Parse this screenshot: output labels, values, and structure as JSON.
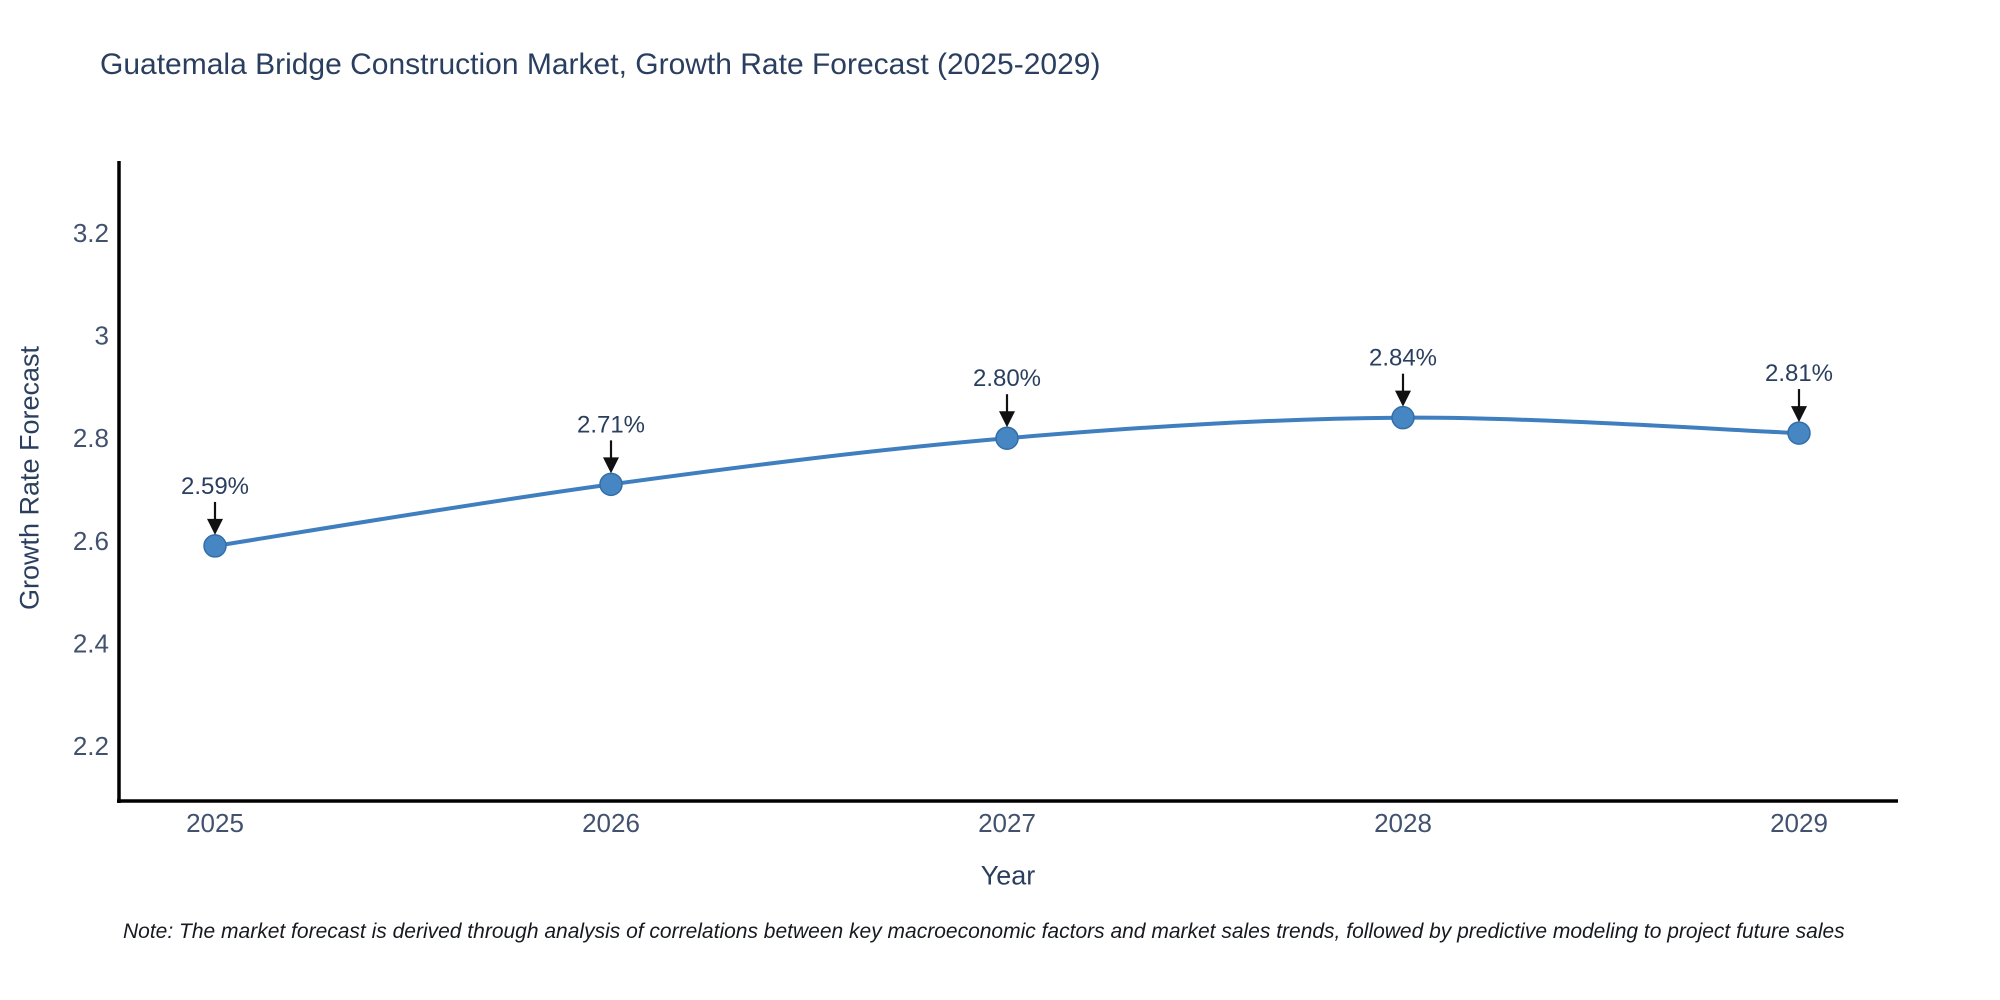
{
  "title": "Guatemala Bridge Construction Market, Growth Rate Forecast (2025-2029)",
  "note": "Note: The market forecast is derived through analysis of correlations between key macroeconomic factors and market sales trends, followed by predictive modeling to project future sales",
  "chart_data": {
    "type": "line",
    "title": "Guatemala Bridge Construction Market, Growth Rate Forecast (2025-2029)",
    "xlabel": "Year",
    "ylabel": "Growth Rate Forecast",
    "x": [
      2025,
      2026,
      2027,
      2028,
      2029
    ],
    "series": [
      {
        "name": "Growth Rate Forecast",
        "values": [
          2.59,
          2.71,
          2.8,
          2.84,
          2.81
        ]
      }
    ],
    "point_labels": [
      "2.59%",
      "2.71%",
      "2.80%",
      "2.84%",
      "2.81%"
    ],
    "xtick_labels": [
      "2025",
      "2026",
      "2027",
      "2028",
      "2029"
    ],
    "ytick_values": [
      2.2,
      2.4,
      2.6,
      2.8,
      3.0,
      3.2
    ],
    "ytick_labels": [
      "2.2",
      "2.4",
      "2.6",
      "2.8",
      "3",
      "3.2"
    ],
    "ylim": [
      2.09,
      3.34
    ],
    "xlim": [
      2024.73,
      2029.25
    ],
    "grid": false,
    "legend": "none",
    "line_shape": "spline",
    "marker_style": "circle",
    "annotations": "value labels with down arrows above each point",
    "colors": {
      "line": "#3f7fbf",
      "marker": "#4687c3",
      "marker_edge": "#346ea9",
      "axis": "#000000",
      "title_text": "#2a3f5f",
      "tick_text": "#42526e",
      "annotation_text": "#2a3f5f",
      "arrow": "#111111",
      "note_text": "#16191f",
      "background": "#ffffff"
    }
  }
}
